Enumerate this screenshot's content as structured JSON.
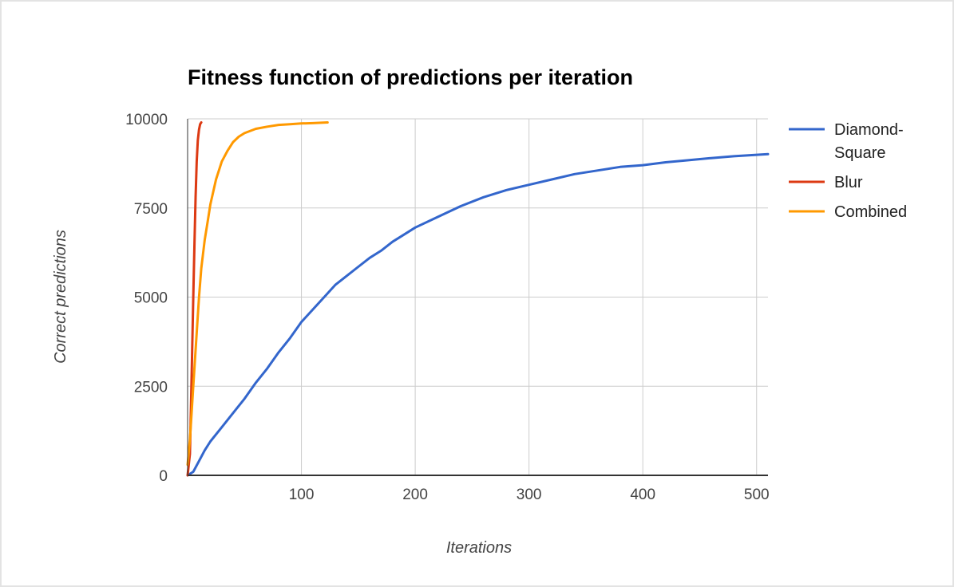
{
  "chart_data": {
    "type": "line",
    "title": "Fitness function of predictions per iteration",
    "xlabel": "Iterations",
    "ylabel": "Correct predictions",
    "xlim": [
      0,
      510
    ],
    "ylim": [
      0,
      10000
    ],
    "x_ticks": [
      "100",
      "200",
      "300",
      "400",
      "500"
    ],
    "y_ticks": [
      "0",
      "2500",
      "5000",
      "7500",
      "10000"
    ],
    "grid": true,
    "legend_position": "right",
    "series": [
      {
        "name": "Diamond-Square",
        "legend_lines": [
          "Diamond-",
          "Square"
        ],
        "color": "#3366cc",
        "points": [
          [
            0,
            0
          ],
          [
            5,
            100
          ],
          [
            10,
            400
          ],
          [
            15,
            700
          ],
          [
            20,
            950
          ],
          [
            30,
            1350
          ],
          [
            40,
            1750
          ],
          [
            50,
            2150
          ],
          [
            60,
            2600
          ],
          [
            70,
            3000
          ],
          [
            80,
            3450
          ],
          [
            90,
            3850
          ],
          [
            100,
            4300
          ],
          [
            110,
            4650
          ],
          [
            120,
            5000
          ],
          [
            130,
            5350
          ],
          [
            140,
            5600
          ],
          [
            150,
            5850
          ],
          [
            160,
            6100
          ],
          [
            170,
            6300
          ],
          [
            180,
            6550
          ],
          [
            190,
            6750
          ],
          [
            200,
            6950
          ],
          [
            220,
            7250
          ],
          [
            240,
            7550
          ],
          [
            260,
            7800
          ],
          [
            280,
            8000
          ],
          [
            300,
            8150
          ],
          [
            320,
            8300
          ],
          [
            340,
            8450
          ],
          [
            360,
            8550
          ],
          [
            380,
            8650
          ],
          [
            400,
            8700
          ],
          [
            420,
            8780
          ],
          [
            440,
            8840
          ],
          [
            460,
            8900
          ],
          [
            480,
            8950
          ],
          [
            500,
            8990
          ],
          [
            510,
            9010
          ]
        ]
      },
      {
        "name": "Blur",
        "legend_lines": [
          "Blur"
        ],
        "color": "#dc3912",
        "points": [
          [
            0,
            0
          ],
          [
            2,
            600
          ],
          [
            3,
            2000
          ],
          [
            4,
            3500
          ],
          [
            5,
            5000
          ],
          [
            6,
            6500
          ],
          [
            7,
            7800
          ],
          [
            8,
            8800
          ],
          [
            9,
            9400
          ],
          [
            10,
            9700
          ],
          [
            11,
            9850
          ],
          [
            12,
            9900
          ]
        ]
      },
      {
        "name": "Combined",
        "legend_lines": [
          "Combined"
        ],
        "color": "#ff9900",
        "points": [
          [
            0,
            300
          ],
          [
            2,
            1000
          ],
          [
            5,
            2500
          ],
          [
            8,
            4000
          ],
          [
            10,
            5000
          ],
          [
            12,
            5800
          ],
          [
            15,
            6600
          ],
          [
            18,
            7200
          ],
          [
            20,
            7600
          ],
          [
            25,
            8300
          ],
          [
            30,
            8800
          ],
          [
            35,
            9100
          ],
          [
            40,
            9350
          ],
          [
            45,
            9500
          ],
          [
            50,
            9600
          ],
          [
            60,
            9720
          ],
          [
            70,
            9780
          ],
          [
            80,
            9830
          ],
          [
            90,
            9850
          ],
          [
            100,
            9870
          ],
          [
            110,
            9880
          ],
          [
            123,
            9900
          ]
        ]
      }
    ]
  }
}
